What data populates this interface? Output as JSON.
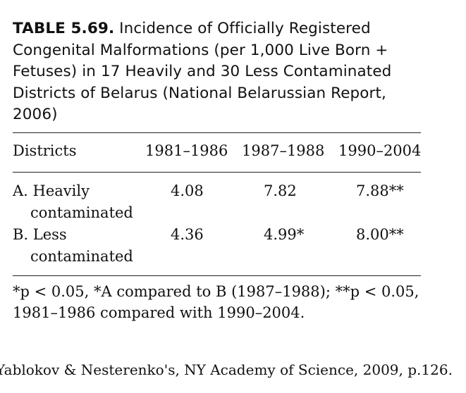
{
  "caption": {
    "label": "TABLE 5.69.",
    "text": "Incidence of Officially Registered Congenital Malformations (per 1,000 Live Born + Fetuses) in 17 Heavily and 30 Less Contaminated Districts of Belarus (National Belarussian Report, 2006)"
  },
  "table": {
    "headers": [
      "Districts",
      "1981–1986",
      "1987–1988",
      "1990–2004"
    ],
    "rows": [
      {
        "name_line1": "A. Heavily",
        "name_line2": "contaminated",
        "values": [
          "4.08",
          "7.82",
          "7.88**"
        ]
      },
      {
        "name_line1": "B. Less",
        "name_line2": "contaminated",
        "values": [
          "4.36",
          "4.99*",
          "8.00**"
        ]
      }
    ]
  },
  "footnote": {
    "line1": "*p < 0.05, *A compared to B (1987–1988); **p < 0.05,",
    "line2": "1981–1986 compared with 1990–2004."
  },
  "source": "Yablokov & Nesterenko's, NY Academy of Science, 2009, p.126."
}
